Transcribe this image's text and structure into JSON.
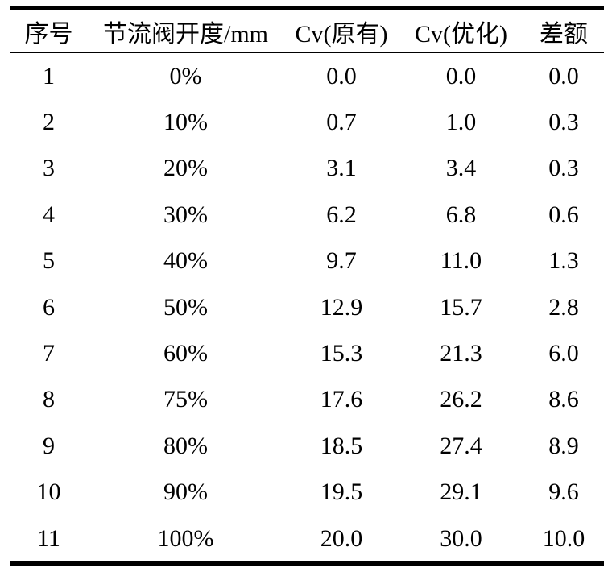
{
  "page": {
    "background": "#ffffff",
    "text_color": "#000000",
    "rule_color": "#000000"
  },
  "table": {
    "columns": [
      "序号",
      "节流阀开度/mm",
      "Cv(原有)",
      "Cv(优化)",
      "差额"
    ],
    "rows": [
      [
        "1",
        "0%",
        "0.0",
        "0.0",
        "0.0"
      ],
      [
        "2",
        "10%",
        "0.7",
        "1.0",
        "0.3"
      ],
      [
        "3",
        "20%",
        "3.1",
        "3.4",
        "0.3"
      ],
      [
        "4",
        "30%",
        "6.2",
        "6.8",
        "0.6"
      ],
      [
        "5",
        "40%",
        "9.7",
        "11.0",
        "1.3"
      ],
      [
        "6",
        "50%",
        "12.9",
        "15.7",
        "2.8"
      ],
      [
        "7",
        "60%",
        "15.3",
        "21.3",
        "6.0"
      ],
      [
        "8",
        "75%",
        "17.6",
        "26.2",
        "8.6"
      ],
      [
        "9",
        "80%",
        "18.5",
        "27.4",
        "8.9"
      ],
      [
        "10",
        "90%",
        "19.5",
        "29.1",
        "9.6"
      ],
      [
        "11",
        "100%",
        "20.0",
        "30.0",
        "10.0"
      ]
    ]
  }
}
